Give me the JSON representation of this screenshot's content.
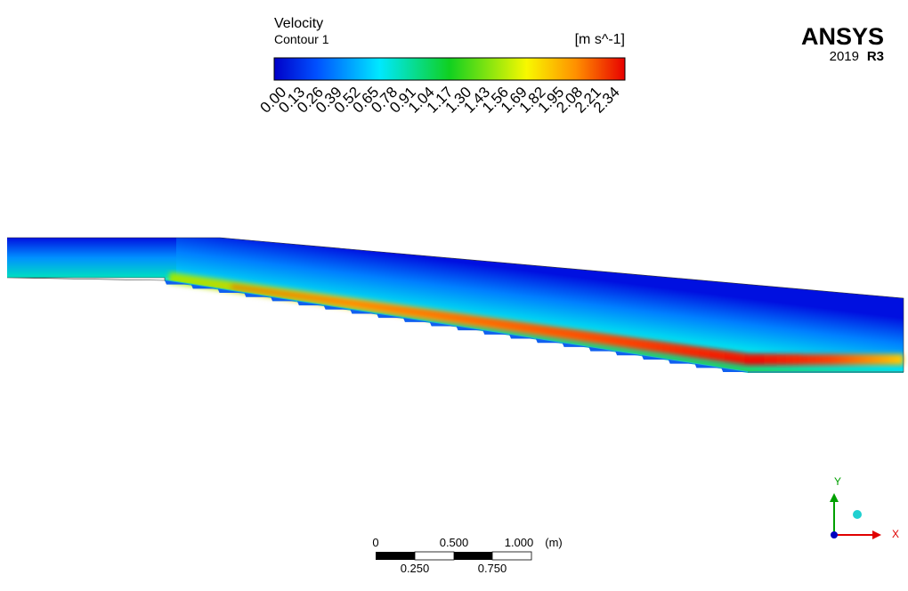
{
  "legend": {
    "title": "Velocity",
    "subtitle": "Contour 1",
    "unit": "[m s^-1]",
    "ticks": [
      "0.00",
      "0.13",
      "0.26",
      "0.39",
      "0.52",
      "0.65",
      "0.78",
      "0.91",
      "1.04",
      "1.17",
      "1.30",
      "1.43",
      "1.56",
      "1.69",
      "1.82",
      "1.95",
      "2.08",
      "2.21",
      "2.34"
    ]
  },
  "brand": {
    "name": "ANSYS",
    "year": "2019",
    "release": "R3"
  },
  "scale_bar": {
    "top": [
      "0",
      "0.500",
      "1.000"
    ],
    "unit": "(m)",
    "bottom": [
      "0.250",
      "0.750"
    ]
  },
  "axes": {
    "y": "Y",
    "x": "X"
  }
}
